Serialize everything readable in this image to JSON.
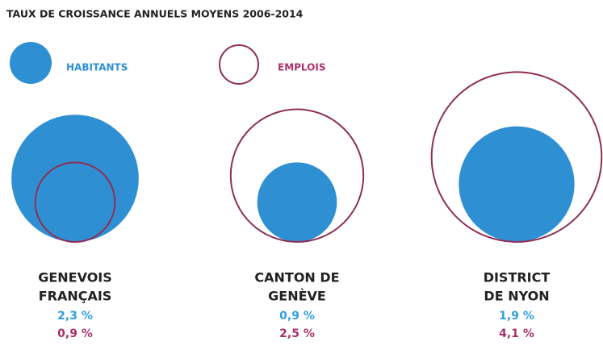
{
  "chart_data": {
    "type": "bubble",
    "title": "TAUX DE CROISSANCE ANNUELS MOYENS 2006-2014",
    "categories": [
      [
        "GENEVOIS",
        "FRANÇAIS"
      ],
      [
        "CANTON DE",
        "GENÈVE"
      ],
      [
        "DISTRICT",
        "DE NYON"
      ]
    ],
    "series": [
      {
        "name": "HABITANTS",
        "color": "#2f8fd3",
        "fill": true,
        "values": [
          2.3,
          0.9,
          1.9
        ],
        "value_labels": [
          "2,3 %",
          "0,9 %",
          "1,9 %"
        ]
      },
      {
        "name": "EMPLOIS",
        "color": "#8e2f55",
        "fill": false,
        "values": [
          0.9,
          2.5,
          4.1
        ],
        "value_labels": [
          "0,9 %",
          "2,5 %",
          "4,1 %"
        ]
      }
    ]
  }
}
